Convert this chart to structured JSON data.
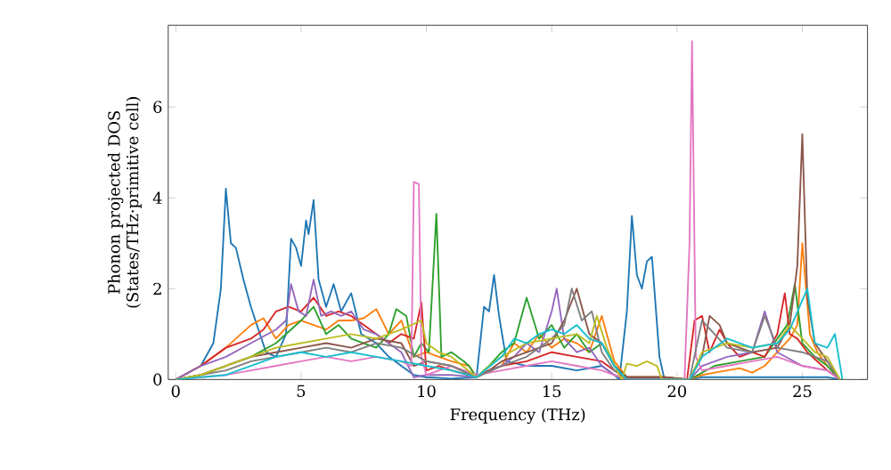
{
  "chart_data": {
    "type": "line",
    "xlabel": "Frequency (THz)",
    "ylabel": "Phonon projected DOS (States/THz·primitive cell)",
    "xlim": [
      -0.3,
      27.6
    ],
    "ylim": [
      0,
      7.8
    ],
    "xticks": [
      0,
      5,
      10,
      15,
      20,
      25
    ],
    "yticks": [
      0,
      2,
      4,
      6
    ],
    "grid": false,
    "marker": "none",
    "line_style": "solid",
    "series": [
      {
        "color": "#1f77b4",
        "x": [
          0,
          1,
          1.5,
          1.8,
          2.0,
          2.2,
          2.4,
          2.7,
          3.0,
          3.3,
          3.6,
          4.0,
          4.4,
          4.6,
          4.8,
          5.0,
          5.2,
          5.3,
          5.5,
          5.7,
          6.0,
          6.3,
          6.6,
          7.0,
          7.4,
          8.0,
          8.5,
          9.0,
          9.5,
          10,
          11,
          12,
          12.3,
          12.5,
          12.7,
          12.9,
          13.2,
          14,
          15,
          16,
          17,
          17.5,
          17.7,
          18.0,
          18.2,
          18.4,
          18.6,
          18.8,
          19.0,
          19.3,
          19.5,
          20.5,
          21,
          23,
          25,
          26,
          26.5
        ],
        "values": [
          0,
          0.3,
          0.8,
          2.0,
          4.2,
          3.0,
          2.9,
          2.2,
          1.6,
          1.1,
          0.6,
          0.5,
          1.0,
          3.1,
          2.9,
          2.5,
          3.5,
          3.2,
          3.95,
          2.2,
          1.6,
          2.1,
          1.5,
          1.9,
          1.0,
          0.8,
          0.5,
          0.3,
          0.1,
          0.05,
          0.02,
          0.05,
          1.6,
          1.5,
          2.3,
          1.4,
          0.4,
          0.3,
          0.3,
          0.2,
          0.3,
          0.1,
          0,
          1.5,
          3.6,
          2.3,
          2.0,
          2.6,
          2.7,
          0.5,
          0,
          0,
          0.05,
          0.05,
          0.05,
          0.05,
          0
        ]
      },
      {
        "color": "#ff7f0e",
        "x": [
          0,
          1,
          2,
          3,
          3.5,
          4,
          4.5,
          5,
          5.5,
          6,
          6.5,
          7,
          7.5,
          8,
          8.5,
          9,
          9.5,
          10,
          10.5,
          11,
          11.7,
          12,
          12.5,
          13,
          13.5,
          14,
          14.5,
          15,
          15.5,
          16,
          16.5,
          17,
          17.5,
          18,
          19.5,
          20.5,
          21,
          21.5,
          22,
          22.5,
          23,
          23.5,
          24,
          24.5,
          24.8,
          25,
          25.3,
          25.6,
          26,
          26.5
        ],
        "values": [
          0,
          0.3,
          0.7,
          1.2,
          1.35,
          0.9,
          1.2,
          1.3,
          1.2,
          1.1,
          1.3,
          1.3,
          1.35,
          1.55,
          1.0,
          1.3,
          0.5,
          0.6,
          0.5,
          0.4,
          0.3,
          0.05,
          0.2,
          0.3,
          0.8,
          0.6,
          1.0,
          0.7,
          0.9,
          0.8,
          0.6,
          1.4,
          0.4,
          0.05,
          0.05,
          0,
          0.1,
          0.15,
          0.2,
          0.25,
          0.15,
          0.3,
          0.6,
          0.9,
          1.2,
          3.0,
          1.0,
          0.6,
          0.3,
          0
        ]
      },
      {
        "color": "#2ca02c",
        "x": [
          0,
          1,
          2,
          3,
          4,
          5,
          5.5,
          6,
          6.5,
          7,
          7.5,
          8,
          8.5,
          8.8,
          9.2,
          9.5,
          9.8,
          10.1,
          10.4,
          10.6,
          11,
          11.5,
          11.7,
          12,
          12.5,
          13,
          13.5,
          14,
          14.5,
          15,
          15.5,
          16,
          16.5,
          17,
          17.5,
          18,
          19.5,
          20.5,
          21.5,
          22.5,
          23.5,
          24,
          24.4,
          24.7,
          25,
          25.5,
          26,
          26.5
        ],
        "values": [
          0,
          0.1,
          0.3,
          0.5,
          0.8,
          1.3,
          1.6,
          1.0,
          1.2,
          0.9,
          0.8,
          0.7,
          1.0,
          1.55,
          1.4,
          0.5,
          0.8,
          0.6,
          3.65,
          0.5,
          0.6,
          0.4,
          0.3,
          0.05,
          0.3,
          0.6,
          0.8,
          1.8,
          0.9,
          1.2,
          0.7,
          1.0,
          0.6,
          0.8,
          0.3,
          0.05,
          0.05,
          0,
          0.3,
          0.4,
          0.5,
          0.9,
          1.2,
          2.1,
          0.8,
          0.5,
          0.3,
          0
        ]
      },
      {
        "color": "#d62728",
        "x": [
          0,
          1,
          2,
          3,
          3.5,
          4,
          4.5,
          5,
          5.5,
          6,
          6.5,
          7,
          7.5,
          8,
          8.5,
          9,
          9.5,
          9.8,
          10,
          10.5,
          11,
          11.7,
          12,
          12.5,
          13,
          14,
          15,
          16,
          17,
          17.5,
          18,
          19.5,
          20.4,
          20.7,
          21,
          21.3,
          21.7,
          22,
          22.5,
          23,
          23.5,
          24,
          24.3,
          24.5,
          24.8,
          25.2,
          25.6,
          26,
          26.5
        ],
        "values": [
          0,
          0.3,
          0.7,
          0.9,
          1.1,
          1.5,
          1.6,
          1.5,
          1.8,
          1.4,
          1.5,
          1.4,
          1.2,
          1.0,
          0.8,
          1.0,
          0.9,
          1.7,
          0.2,
          0.3,
          0.2,
          0.1,
          0.05,
          0.2,
          0.3,
          0.4,
          0.6,
          0.5,
          0.4,
          0.2,
          0.05,
          0.05,
          0,
          1.3,
          1.4,
          0.6,
          1.1,
          0.8,
          0.5,
          0.6,
          0.5,
          1.0,
          1.9,
          1.0,
          0.9,
          0.6,
          0.4,
          0.2,
          0
        ]
      },
      {
        "color": "#9467bd",
        "x": [
          0,
          1,
          2,
          3,
          4,
          4.4,
          4.6,
          4.9,
          5.2,
          5.5,
          5.8,
          6.2,
          6.6,
          7,
          7.5,
          8,
          8.5,
          9,
          9.5,
          10,
          11,
          12,
          12.5,
          13,
          13.5,
          14,
          14.5,
          15,
          15.2,
          15.5,
          16,
          16.5,
          17,
          17.5,
          18,
          19.5,
          20.5,
          21,
          22,
          23,
          23.5,
          24,
          25,
          26,
          26.5
        ],
        "values": [
          0,
          0.3,
          0.5,
          0.8,
          1.1,
          1.3,
          2.1,
          1.5,
          1.4,
          2.2,
          1.4,
          1.5,
          1.4,
          1.5,
          1.1,
          1.0,
          0.8,
          0.6,
          0.05,
          0.1,
          0.1,
          0.05,
          0.2,
          0.3,
          0.5,
          0.8,
          0.6,
          1.5,
          2.0,
          0.9,
          0.6,
          0.7,
          0.3,
          0.1,
          0,
          0,
          0,
          0.3,
          0.5,
          0.6,
          1.5,
          0.6,
          0.3,
          0.2,
          0
        ]
      },
      {
        "color": "#8c564b",
        "x": [
          0,
          1,
          2,
          3,
          4,
          5,
          6,
          7,
          8,
          9,
          9.5,
          10,
          11,
          12,
          12.5,
          13,
          14,
          15,
          15.5,
          16,
          16.5,
          17,
          17.5,
          18,
          19.5,
          20.5,
          21,
          21.3,
          21.7,
          22,
          23,
          24,
          24.5,
          24.8,
          25.0,
          25.2,
          25.5,
          26,
          26.5
        ],
        "values": [
          0,
          0.1,
          0.3,
          0.5,
          0.6,
          0.7,
          0.8,
          0.7,
          0.9,
          0.8,
          0.3,
          0.4,
          0.3,
          0.05,
          0.2,
          0.4,
          0.6,
          0.8,
          1.3,
          2.0,
          1.0,
          0.8,
          0.3,
          0.05,
          0.05,
          0,
          0.5,
          1.4,
          1.2,
          0.8,
          0.6,
          0.7,
          1.2,
          2.5,
          5.4,
          1.8,
          0.8,
          0.4,
          0
        ]
      },
      {
        "color": "#e377c2",
        "x": [
          0,
          1,
          2,
          3,
          4,
          5,
          6,
          7,
          8,
          9,
          9.4,
          9.5,
          9.7,
          9.8,
          10,
          11,
          12,
          13,
          14,
          15,
          16,
          17,
          17.5,
          18,
          19.5,
          20.3,
          20.5,
          20.6,
          20.75,
          21,
          22,
          23,
          24,
          25,
          26,
          26.5
        ],
        "values": [
          0,
          0.05,
          0.1,
          0.2,
          0.3,
          0.4,
          0.5,
          0.4,
          0.5,
          0.4,
          0.3,
          4.35,
          4.3,
          0.5,
          0.1,
          0.3,
          0.1,
          0.2,
          0.3,
          0.4,
          0.3,
          0.2,
          0.1,
          0,
          0,
          0,
          3.0,
          7.45,
          0.5,
          0.2,
          0.3,
          0.4,
          0.5,
          0.3,
          0.2,
          0
        ]
      },
      {
        "color": "#7f7f7f",
        "x": [
          0,
          1,
          2,
          3,
          4,
          5,
          6,
          7,
          8,
          9,
          10,
          11,
          12,
          13,
          14,
          15,
          15.5,
          15.8,
          16.2,
          16.6,
          17,
          17.5,
          18,
          19.5,
          20.5,
          21,
          21.5,
          22,
          23,
          23.5,
          24,
          25,
          26,
          26.5
        ],
        "values": [
          0,
          0.1,
          0.2,
          0.4,
          0.5,
          0.6,
          0.7,
          0.6,
          0.8,
          0.7,
          0.4,
          0.3,
          0.05,
          0.3,
          0.5,
          0.9,
          1.2,
          2.0,
          1.3,
          1.5,
          0.6,
          0.2,
          0,
          0,
          0,
          1.3,
          1.0,
          0.7,
          0.6,
          1.4,
          0.7,
          0.6,
          0.4,
          0
        ]
      },
      {
        "color": "#bcbd22",
        "x": [
          0,
          1,
          2,
          3,
          4,
          5,
          6,
          7,
          8,
          9,
          9.8,
          10,
          10.5,
          11,
          12,
          12.5,
          13,
          14,
          15,
          16,
          16.5,
          16.8,
          17.2,
          17.6,
          17.8,
          18.0,
          18.4,
          18.8,
          19.2,
          19.4,
          20.5,
          21,
          22,
          23,
          24,
          24.5,
          25,
          25.5,
          26,
          26.5
        ],
        "values": [
          0,
          0.1,
          0.3,
          0.5,
          0.7,
          0.8,
          0.9,
          1.0,
          0.9,
          1.1,
          1.3,
          0.8,
          0.6,
          0.5,
          0.05,
          0.3,
          0.5,
          0.8,
          0.9,
          1.0,
          0.8,
          1.4,
          0.7,
          0.2,
          0,
          0.35,
          0.3,
          0.4,
          0.3,
          0,
          0,
          0.6,
          0.8,
          0.7,
          0.8,
          1.2,
          0.9,
          0.6,
          0.5,
          0
        ]
      },
      {
        "color": "#17becf",
        "x": [
          0,
          1,
          2,
          3,
          4,
          5,
          6,
          7,
          8,
          9,
          10,
          11,
          12,
          13,
          13.5,
          14,
          14.5,
          15,
          15.5,
          16,
          16.5,
          17,
          17.5,
          18,
          20.5,
          21,
          22,
          23,
          24,
          24.5,
          25.2,
          25.5,
          26,
          26.3,
          26.6
        ],
        "values": [
          0,
          0.05,
          0.1,
          0.3,
          0.5,
          0.6,
          0.5,
          0.6,
          0.5,
          0.4,
          0.3,
          0.2,
          0.05,
          0.5,
          0.9,
          0.8,
          1.0,
          1.1,
          1.0,
          1.2,
          0.9,
          0.8,
          0.3,
          0,
          0,
          0.5,
          0.9,
          0.7,
          0.8,
          1.1,
          2.0,
          0.8,
          0.7,
          1.0,
          0
        ]
      }
    ]
  }
}
